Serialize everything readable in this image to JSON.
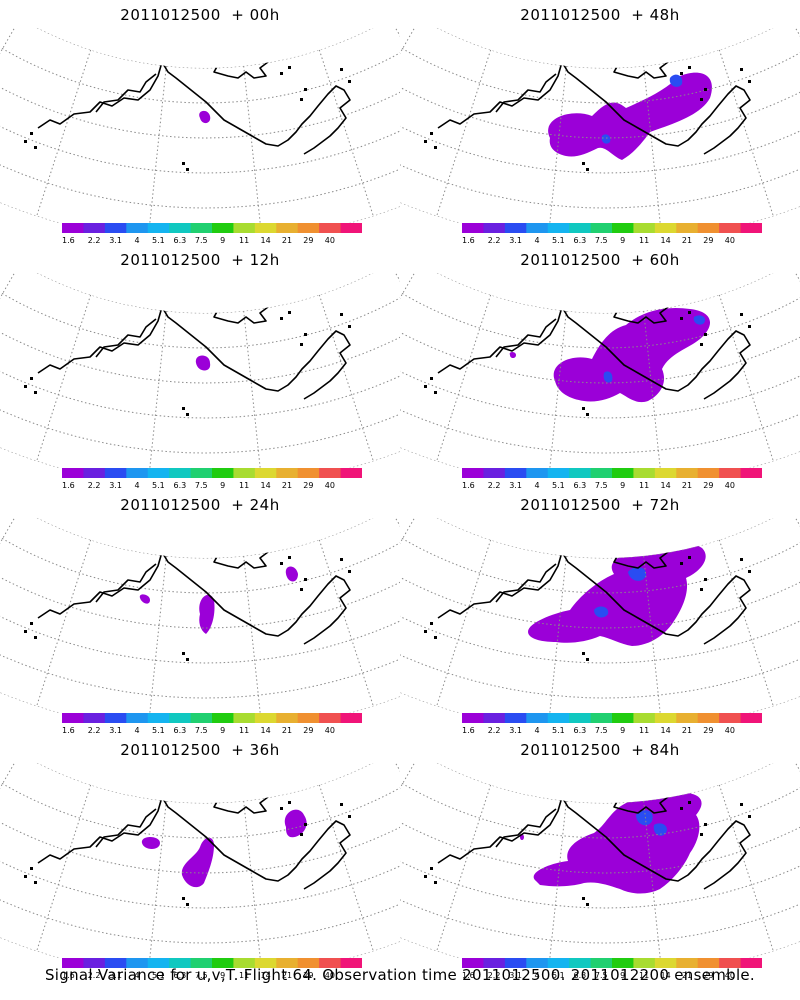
{
  "panels": [
    {
      "title": "2011012500  + 00h",
      "lead": 0
    },
    {
      "title": "2011012500  + 48h",
      "lead": 48
    },
    {
      "title": "2011012500  + 12h",
      "lead": 12
    },
    {
      "title": "2011012500  + 60h",
      "lead": 60
    },
    {
      "title": "2011012500  + 24h",
      "lead": 24
    },
    {
      "title": "2011012500  + 72h",
      "lead": 72
    },
    {
      "title": "2011012500  + 36h",
      "lead": 36
    },
    {
      "title": "2011012500  + 84h",
      "lead": 84
    }
  ],
  "colorbar": {
    "labels": [
      "1.6",
      "2.2",
      "3.1",
      "4",
      "5.1",
      "6.3",
      "7.5",
      "9",
      "11",
      "14",
      "21",
      "29",
      "40"
    ],
    "colors": [
      "#9b00d8",
      "#6a20e0",
      "#2a4cf2",
      "#1e96f0",
      "#14b4f0",
      "#10c8c0",
      "#20d070",
      "#20cc10",
      "#a8dc30",
      "#dcd830",
      "#e8b030",
      "#f09030",
      "#f05050",
      "#f01478"
    ]
  },
  "footer": "Signal Variance for u,v,T. Flight 64. Observation time 2011012500. 2011012200 ensemble."
}
